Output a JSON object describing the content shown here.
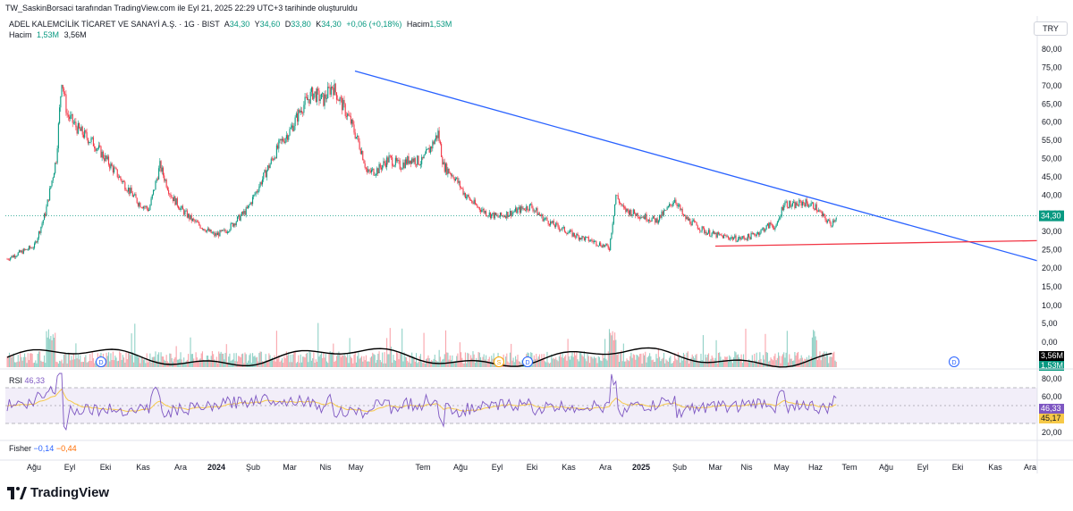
{
  "attribution": "TW_SaskinBorsaci tarafından TradingView.com ile Eyl 21, 2025 22:29 UTC+3 tarihinde oluşturuldu",
  "symbol_line": {
    "name": "ADEL KALEMCİLİK TİCARET VE SANAYİ A.Ş. · 1G · BIST",
    "o_label": "A",
    "o_value": "34,30",
    "h_label": "Y",
    "h_value": "34,60",
    "l_label": "D",
    "l_value": "33,80",
    "c_label": "K",
    "c_value": "34,30",
    "change": "+0,06 (+0,18%)",
    "vol_label": "Hacim",
    "vol_value": "1,53M"
  },
  "volume_line": {
    "label": "Hacim",
    "value1": "1,53M",
    "value2": "3,56M"
  },
  "currency": "TRY",
  "rsi_legend": {
    "label": "RSI",
    "value": "46,33"
  },
  "fisher_legend": {
    "label": "Fisher",
    "value1": "−0,14",
    "value2": "−0,44"
  },
  "brand": "TradingView",
  "colors": {
    "up": "#089981",
    "down": "#f23645",
    "trendline_blue": "#2962ff",
    "trendline_red": "#f23645",
    "rsi_line": "#7e57c2",
    "rsi_ma": "#f7c948",
    "volume_ma": "#000000"
  },
  "chart_data": [
    {
      "type": "candlestick",
      "title": "ADEL KALEMCİLİK TİCARET VE SANAYİ A.Ş. · 1G · BIST",
      "ylim": [
        20,
        80
      ],
      "y_ticks": [
        "80,00",
        "75,00",
        "70,00",
        "65,00",
        "60,00",
        "55,00",
        "50,00",
        "45,00",
        "40,00",
        "35,00",
        "30,00",
        "25,00",
        "20,00"
      ],
      "x_ticks": [
        "Ağu",
        "Eyl",
        "Eki",
        "Kas",
        "Ara",
        "2024",
        "Şub",
        "Mar",
        "Nis",
        "May",
        "Tem",
        "Ağu",
        "Eyl",
        "Eki",
        "Kas",
        "Ara",
        "2025",
        "Şub",
        "Mar",
        "Nis",
        "May",
        "Haz",
        "Tem",
        "Ağu",
        "Eyl",
        "Eki",
        "Kas",
        "Ara"
      ],
      "last_price": "34,30",
      "close_path": [
        [
          0,
          22.5
        ],
        [
          10,
          24
        ],
        [
          25,
          26
        ],
        [
          35,
          35
        ],
        [
          45,
          50
        ],
        [
          50,
          72
        ],
        [
          55,
          62
        ],
        [
          65,
          58
        ],
        [
          80,
          54
        ],
        [
          95,
          48
        ],
        [
          110,
          42
        ],
        [
          120,
          38
        ],
        [
          130,
          36
        ],
        [
          140,
          48
        ],
        [
          150,
          40
        ],
        [
          160,
          36
        ],
        [
          170,
          33
        ],
        [
          180,
          31
        ],
        [
          190,
          29
        ],
        [
          200,
          30
        ],
        [
          210,
          33
        ],
        [
          220,
          36
        ],
        [
          230,
          42
        ],
        [
          240,
          48
        ],
        [
          250,
          54
        ],
        [
          260,
          58
        ],
        [
          270,
          64
        ],
        [
          280,
          68
        ],
        [
          290,
          66
        ],
        [
          298,
          70
        ],
        [
          305,
          66
        ],
        [
          315,
          60
        ],
        [
          325,
          52
        ],
        [
          330,
          46
        ],
        [
          340,
          47
        ],
        [
          350,
          50
        ],
        [
          360,
          48
        ],
        [
          370,
          50
        ],
        [
          380,
          49
        ],
        [
          390,
          54
        ],
        [
          395,
          57
        ],
        [
          400,
          48
        ],
        [
          410,
          45
        ],
        [
          420,
          40
        ],
        [
          430,
          37
        ],
        [
          440,
          35
        ],
        [
          450,
          34
        ],
        [
          460,
          35
        ],
        [
          470,
          36
        ],
        [
          480,
          37
        ],
        [
          490,
          34
        ],
        [
          500,
          32
        ],
        [
          510,
          30.5
        ],
        [
          520,
          29
        ],
        [
          530,
          28
        ],
        [
          540,
          27
        ],
        [
          552,
          25.5
        ],
        [
          558,
          40
        ],
        [
          565,
          36
        ],
        [
          575,
          35
        ],
        [
          585,
          34
        ],
        [
          595,
          33
        ],
        [
          605,
          36
        ],
        [
          612,
          39
        ],
        [
          620,
          34
        ],
        [
          630,
          32
        ],
        [
          640,
          30
        ],
        [
          650,
          29
        ],
        [
          660,
          28.5
        ],
        [
          670,
          28
        ],
        [
          680,
          28.5
        ],
        [
          690,
          30
        ],
        [
          700,
          32
        ],
        [
          705,
          31
        ],
        [
          712,
          38
        ],
        [
          720,
          37
        ],
        [
          730,
          38
        ],
        [
          740,
          37
        ],
        [
          748,
          34
        ],
        [
          755,
          32
        ],
        [
          760,
          34.3
        ]
      ],
      "trendlines": [
        {
          "color": "blue",
          "from": [
            390,
            74
          ],
          "to": [
            1160,
            22
          ]
        },
        {
          "color": "red",
          "from": [
            800,
            26
          ],
          "to": [
            1160,
            27.5
          ]
        }
      ]
    },
    {
      "type": "bar",
      "title": "Hacim",
      "y_ticks": [
        "15,00",
        "10,00",
        "5,00",
        "0,00"
      ],
      "last_values": [
        "3,56M",
        "1,53M"
      ]
    },
    {
      "type": "line",
      "title": "RSI",
      "ylim": [
        0,
        100
      ],
      "y_ticks": [
        "80,00",
        "60,00",
        "40,00",
        "20,00"
      ],
      "bands": [
        30,
        70
      ],
      "last_values": [
        "46,33",
        "45,17"
      ]
    }
  ]
}
